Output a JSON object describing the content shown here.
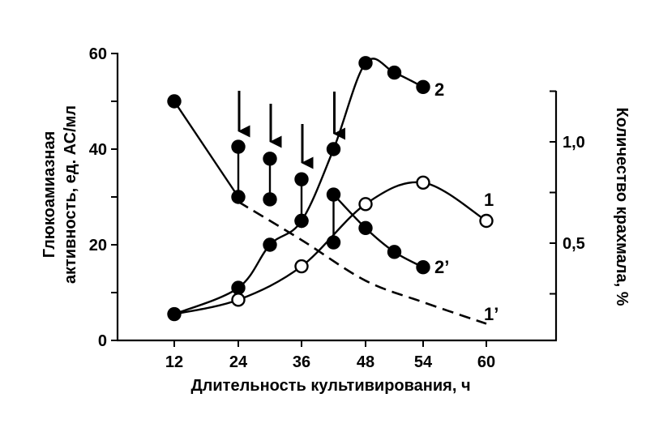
{
  "chart_data": {
    "type": "line",
    "xlabel": "Длительность культивирования, ч",
    "ylabel_lines": [
      "Глюкоамиазная",
      "активность, ед. АС/мл"
    ],
    "y2label": "Количество крахмала, %",
    "x_ticks": [
      "12",
      "24",
      "36",
      "48",
      "54",
      "60"
    ],
    "y_ticks": [
      "0",
      "20",
      "40",
      "60"
    ],
    "y2_ticks": [
      "0,5",
      "1,0"
    ],
    "ylim": [
      0,
      60
    ],
    "series": [
      {
        "name": "1",
        "marker": "open-circle",
        "points": [
          [
            12,
            5.5
          ],
          [
            24,
            8.5
          ],
          [
            36,
            15.5
          ],
          [
            48,
            28.5
          ],
          [
            54,
            33
          ],
          [
            60,
            25
          ]
        ]
      },
      {
        "name": "2",
        "marker": "filled-circle",
        "points": [
          [
            12,
            5.5
          ],
          [
            24,
            11
          ],
          [
            30,
            20
          ],
          [
            36,
            25
          ],
          [
            42,
            40
          ],
          [
            48,
            58
          ],
          [
            51,
            56
          ],
          [
            54,
            53
          ]
        ]
      },
      {
        "name": "2’",
        "marker": "filled-circle",
        "points": [
          [
            12,
            50
          ],
          [
            24,
            30
          ],
          [
            30,
            29.5
          ],
          [
            36,
            25
          ],
          [
            42,
            20.5
          ],
          [
            48,
            23.5
          ],
          [
            51,
            18.5
          ],
          [
            54,
            15.3
          ]
        ],
        "peaks": [
          [
            24,
            40.5
          ],
          [
            30,
            38
          ],
          [
            36,
            33.7
          ],
          [
            42,
            30.5
          ]
        ]
      },
      {
        "name": "1’",
        "marker": "none",
        "style": "dashed",
        "points": [
          [
            24,
            29
          ],
          [
            36,
            21
          ],
          [
            48,
            12.5
          ],
          [
            54,
            8
          ],
          [
            60,
            3.5
          ]
        ]
      }
    ],
    "arrows_x": [
      24,
      30,
      36,
      42
    ],
    "grid": false,
    "legend": "inline"
  }
}
